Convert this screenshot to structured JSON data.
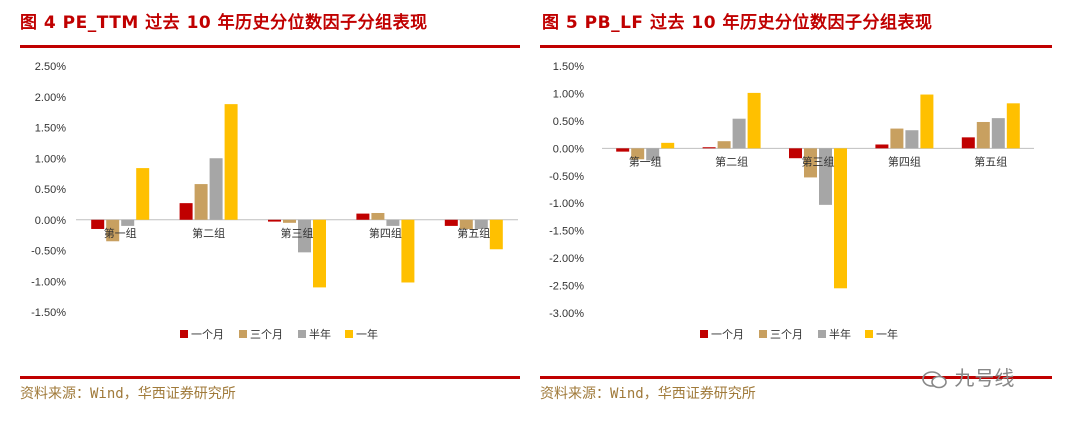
{
  "left": {
    "title": "图 4 PE_TTM 过去 10 年历史分位数因子分组表现",
    "source": "资料来源：Wind，华西证券研究所"
  },
  "right": {
    "title": "图 5 PB_LF 过去 10 年历史分位数因子分组表现",
    "source": "资料来源：Wind，华西证券研究所"
  },
  "watermark": "九号线",
  "colors": {
    "brand": "#c00000",
    "s1": "#c00000",
    "s2": "#c8a060",
    "s3": "#a6a6a6",
    "s4": "#ffc000"
  },
  "chart_data": [
    {
      "type": "bar",
      "title": "图 4 PE_TTM 过去 10 年历史分位数因子分组表现",
      "categories": [
        "第一组",
        "第二组",
        "第三组",
        "第四组",
        "第五组"
      ],
      "series": [
        {
          "name": "一个月",
          "values": [
            -0.15,
            0.27,
            -0.03,
            0.1,
            -0.1
          ]
        },
        {
          "name": "三个月",
          "values": [
            -0.35,
            0.58,
            -0.05,
            0.11,
            -0.15
          ]
        },
        {
          "name": "半年",
          "values": [
            -0.1,
            1.0,
            -0.53,
            -0.1,
            -0.15
          ]
        },
        {
          "name": "一年",
          "values": [
            0.84,
            1.88,
            -1.1,
            -1.02,
            -0.48
          ]
        }
      ],
      "ylim": [
        -1.5,
        2.5
      ],
      "yticks": [
        "2.50%",
        "2.00%",
        "1.50%",
        "1.00%",
        "0.50%",
        "0.00%",
        "-0.50%",
        "-1.00%",
        "-1.50%"
      ],
      "legend": "bottom"
    },
    {
      "type": "bar",
      "title": "图 5 PB_LF 过去 10 年历史分位数因子分组表现",
      "categories": [
        "第一组",
        "第二组",
        "第三组",
        "第四组",
        "第五组"
      ],
      "series": [
        {
          "name": "一个月",
          "values": [
            -0.06,
            0.02,
            -0.18,
            0.07,
            0.2
          ]
        },
        {
          "name": "三个月",
          "values": [
            -0.2,
            0.13,
            -0.53,
            0.36,
            0.48
          ]
        },
        {
          "name": "半年",
          "values": [
            -0.22,
            0.54,
            -1.03,
            0.33,
            0.55
          ]
        },
        {
          "name": "一年",
          "values": [
            0.1,
            1.01,
            -2.55,
            0.98,
            0.82
          ]
        }
      ],
      "ylim": [
        -3.0,
        1.5
      ],
      "yticks": [
        "1.50%",
        "1.00%",
        "0.50%",
        "0.00%",
        "-0.50%",
        "-1.00%",
        "-1.50%",
        "-2.00%",
        "-2.50%",
        "-3.00%"
      ],
      "legend": "bottom"
    }
  ]
}
